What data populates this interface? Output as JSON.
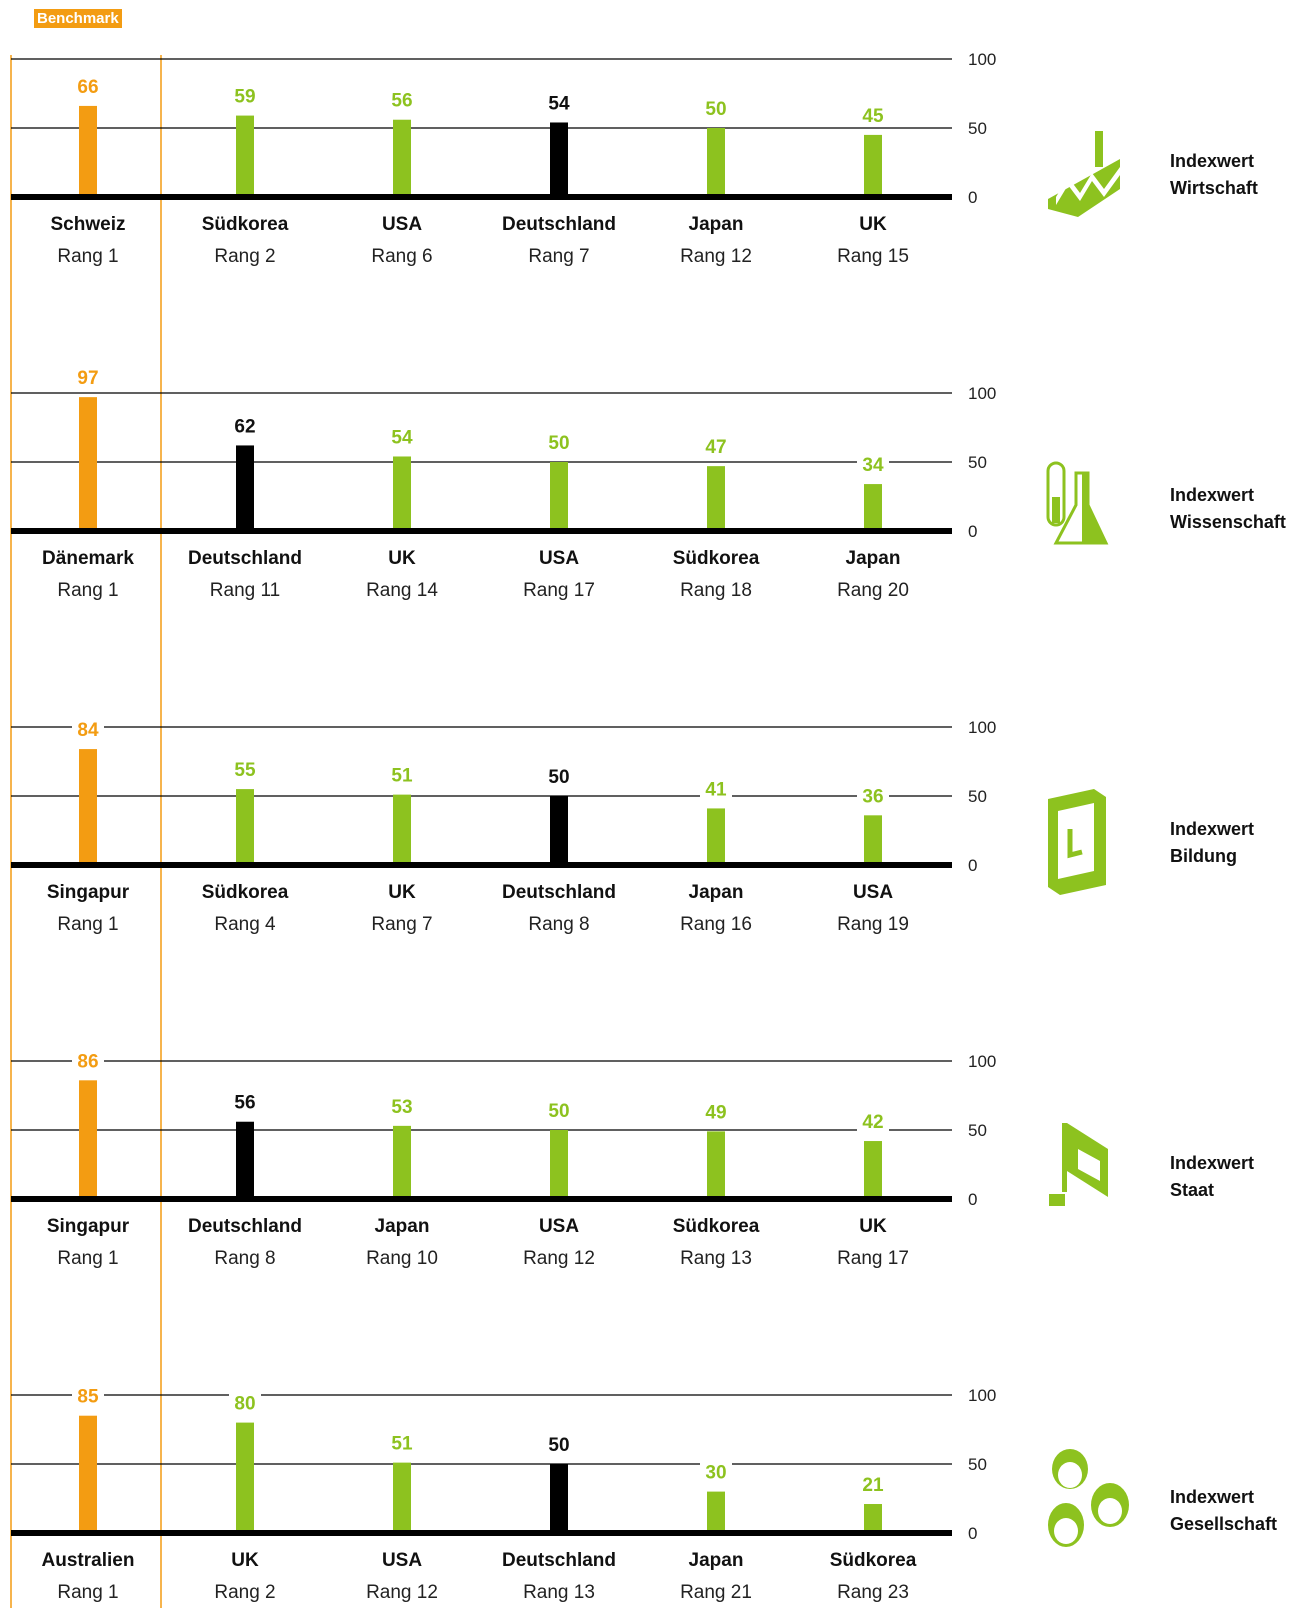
{
  "badge": "Benchmark",
  "colors": {
    "benchmark": "#f39c12",
    "country": "#8dc21f",
    "germany": "#000000",
    "axis": "#000000"
  },
  "chart_data": [
    {
      "type": "bar",
      "title": "Indexwert Wirtschaft",
      "title_lines": [
        "Indexwert",
        "Wirtschaft"
      ],
      "icon": "factory-icon",
      "ylim": [
        0,
        100
      ],
      "yticks": [
        "100",
        "50",
        "0"
      ],
      "categories": [
        "Schweiz",
        "Südkorea",
        "USA",
        "Deutschland",
        "Japan",
        "UK"
      ],
      "ranks": [
        "Rang 1",
        "Rang 2",
        "Rang 6",
        "Rang 7",
        "Rang 12",
        "Rang 15"
      ],
      "values": [
        66,
        59,
        56,
        54,
        50,
        45
      ],
      "kinds": [
        "benchmark",
        "country",
        "country",
        "germany",
        "country",
        "country"
      ]
    },
    {
      "type": "bar",
      "title": "Indexwert Wissenschaft",
      "title_lines": [
        "Indexwert",
        "Wissenschaft"
      ],
      "icon": "test-tube-flask-icon",
      "ylim": [
        0,
        100
      ],
      "yticks": [
        "100",
        "50",
        "0"
      ],
      "categories": [
        "Dänemark",
        "Deutschland",
        "UK",
        "USA",
        "Südkorea",
        "Japan"
      ],
      "ranks": [
        "Rang 1",
        "Rang 11",
        "Rang 14",
        "Rang 17",
        "Rang 18",
        "Rang 20"
      ],
      "values": [
        97,
        62,
        54,
        50,
        47,
        34
      ],
      "kinds": [
        "benchmark",
        "germany",
        "country",
        "country",
        "country",
        "country"
      ]
    },
    {
      "type": "bar",
      "title": "Indexwert Bildung",
      "title_lines": [
        "Indexwert",
        "Bildung"
      ],
      "icon": "book-icon",
      "ylim": [
        0,
        100
      ],
      "yticks": [
        "100",
        "50",
        "0"
      ],
      "categories": [
        "Singapur",
        "Südkorea",
        "UK",
        "Deutschland",
        "Japan",
        "USA"
      ],
      "ranks": [
        "Rang 1",
        "Rang 4",
        "Rang 7",
        "Rang 8",
        "Rang 16",
        "Rang 19"
      ],
      "values": [
        84,
        55,
        51,
        50,
        41,
        36
      ],
      "kinds": [
        "benchmark",
        "country",
        "country",
        "germany",
        "country",
        "country"
      ]
    },
    {
      "type": "bar",
      "title": "Indexwert Staat",
      "title_lines": [
        "Indexwert",
        "Staat"
      ],
      "icon": "music-note-flag-icon",
      "ylim": [
        0,
        100
      ],
      "yticks": [
        "100",
        "50",
        "0"
      ],
      "categories": [
        "Singapur",
        "Deutschland",
        "Japan",
        "USA",
        "Südkorea",
        "UK"
      ],
      "ranks": [
        "Rang 1",
        "Rang 8",
        "Rang 10",
        "Rang 12",
        "Rang 13",
        "Rang 17"
      ],
      "values": [
        86,
        56,
        53,
        50,
        49,
        42
      ],
      "kinds": [
        "benchmark",
        "germany",
        "country",
        "country",
        "country",
        "country"
      ]
    },
    {
      "type": "bar",
      "title": "Indexwert Gesellschaft",
      "title_lines": [
        "Indexwert",
        "Gesellschaft"
      ],
      "icon": "people-icon",
      "ylim": [
        0,
        100
      ],
      "yticks": [
        "100",
        "50",
        "0"
      ],
      "categories": [
        "Australien",
        "UK",
        "USA",
        "Deutschland",
        "Japan",
        "Südkorea"
      ],
      "ranks": [
        "Rang 1",
        "Rang 2",
        "Rang 12",
        "Rang 13",
        "Rang 21",
        "Rang 23"
      ],
      "values": [
        85,
        80,
        51,
        50,
        30,
        21
      ],
      "kinds": [
        "benchmark",
        "country",
        "country",
        "germany",
        "country",
        "country"
      ]
    }
  ]
}
